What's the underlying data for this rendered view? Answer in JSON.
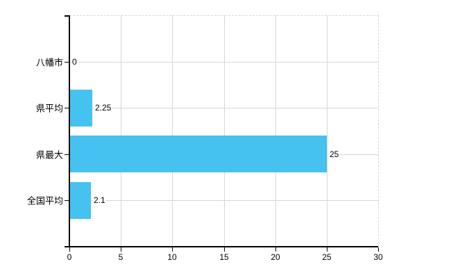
{
  "chart_data": {
    "type": "bar",
    "orientation": "horizontal",
    "title": "",
    "xlabel": "",
    "ylabel": "",
    "categories": [
      "八幡市",
      "県平均",
      "県最大",
      "全国平均"
    ],
    "values": [
      0,
      2.25,
      25,
      2.1
    ],
    "value_labels": [
      "0",
      "2.25",
      "25",
      "2.1"
    ],
    "xlim": [
      0,
      30
    ],
    "xticks": [
      0,
      5,
      10,
      15,
      20,
      25,
      30
    ],
    "xtick_labels": [
      "0",
      "5",
      "10",
      "15",
      "20",
      "25",
      "30"
    ],
    "grid": true,
    "legend": false,
    "colors": {
      "bar": "#45C2F0",
      "gridline": "#D6D6D6",
      "axis": "#000000",
      "text": "#000000",
      "background": "#FFFFFF"
    }
  }
}
